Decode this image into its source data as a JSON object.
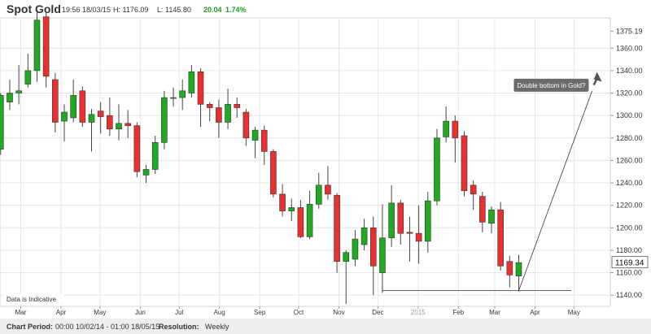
{
  "header": {
    "title": "Spot Gold",
    "time": "19:56 18/03/15",
    "high": "H: 1176.09",
    "low": "L: 1145.80",
    "change": "20.04",
    "change_pct": "1.74%"
  },
  "footer": {
    "period_label": "Chart Period:",
    "period_value": "00:00 10/02/14 - 01:00 18/05/15",
    "resolution_label": "Resolution:",
    "resolution_value": "Weekly"
  },
  "note": "Data is Indicative",
  "callout": "Double bottom in Gold?",
  "colors": {
    "up": "#1faa1f",
    "down": "#e83030",
    "wick": "#444444"
  },
  "chart_data": {
    "type": "candlestick",
    "title": "Spot Gold",
    "ylim": [
      1130,
      1387
    ],
    "yticks": [
      1140,
      1160,
      1180,
      1200,
      1220,
      1240,
      1260,
      1280,
      1300,
      1320,
      1340,
      1360,
      1375.19
    ],
    "x_period": [
      "2014-02-10",
      "2015-05-18"
    ],
    "x_labels": [
      {
        "label": "Mar",
        "date": "2014-03-01"
      },
      {
        "label": "Apr",
        "date": "2014-04-01"
      },
      {
        "label": "May",
        "date": "2014-05-01"
      },
      {
        "label": "Jun",
        "date": "2014-06-01"
      },
      {
        "label": "Jul",
        "date": "2014-07-01"
      },
      {
        "label": "Aug",
        "date": "2014-08-01"
      },
      {
        "label": "Sep",
        "date": "2014-09-01"
      },
      {
        "label": "Oct",
        "date": "2014-10-01"
      },
      {
        "label": "Nov",
        "date": "2014-11-01"
      },
      {
        "label": "Dec",
        "date": "2014-12-01"
      },
      {
        "label": "2015",
        "date": "2015-01-01"
      },
      {
        "label": "Feb",
        "date": "2015-02-01"
      },
      {
        "label": "Mar",
        "date": "2015-03-01"
      },
      {
        "label": "Apr",
        "date": "2015-04-01"
      },
      {
        "label": "May",
        "date": "2015-05-01"
      }
    ],
    "resolution": "Weekly",
    "last_price": "1169.34",
    "grid": true,
    "candles": [
      {
        "date": "2014-02-10",
        "o": 1270,
        "h": 1320,
        "l": 1265,
        "c": 1318
      },
      {
        "date": "2014-02-17",
        "o": 1312,
        "h": 1332,
        "l": 1305,
        "c": 1320
      },
      {
        "date": "2014-02-24",
        "o": 1320,
        "h": 1345,
        "l": 1310,
        "c": 1322
      },
      {
        "date": "2014-03-03",
        "o": 1328,
        "h": 1355,
        "l": 1325,
        "c": 1340
      },
      {
        "date": "2014-03-10",
        "o": 1340,
        "h": 1392,
        "l": 1330,
        "c": 1385
      },
      {
        "date": "2014-03-17",
        "o": 1388,
        "h": 1392,
        "l": 1325,
        "c": 1335
      },
      {
        "date": "2014-03-24",
        "o": 1332,
        "h": 1338,
        "l": 1285,
        "c": 1294
      },
      {
        "date": "2014-03-31",
        "o": 1295,
        "h": 1310,
        "l": 1277,
        "c": 1303
      },
      {
        "date": "2014-04-07",
        "o": 1298,
        "h": 1332,
        "l": 1294,
        "c": 1318
      },
      {
        "date": "2014-04-14",
        "o": 1322,
        "h": 1326,
        "l": 1290,
        "c": 1294
      },
      {
        "date": "2014-04-21",
        "o": 1294,
        "h": 1306,
        "l": 1268,
        "c": 1301
      },
      {
        "date": "2014-04-28",
        "o": 1304,
        "h": 1312,
        "l": 1284,
        "c": 1299
      },
      {
        "date": "2014-05-05",
        "o": 1300,
        "h": 1316,
        "l": 1282,
        "c": 1288
      },
      {
        "date": "2014-05-12",
        "o": 1288,
        "h": 1310,
        "l": 1278,
        "c": 1293
      },
      {
        "date": "2014-05-19",
        "o": 1293,
        "h": 1305,
        "l": 1280,
        "c": 1291
      },
      {
        "date": "2014-05-26",
        "o": 1291,
        "h": 1294,
        "l": 1245,
        "c": 1250
      },
      {
        "date": "2014-06-02",
        "o": 1247,
        "h": 1256,
        "l": 1240,
        "c": 1252
      },
      {
        "date": "2014-06-09",
        "o": 1252,
        "h": 1282,
        "l": 1248,
        "c": 1276
      },
      {
        "date": "2014-06-16",
        "o": 1276,
        "h": 1322,
        "l": 1270,
        "c": 1316
      },
      {
        "date": "2014-06-23",
        "o": 1316,
        "h": 1325,
        "l": 1308,
        "c": 1316
      },
      {
        "date": "2014-06-30",
        "o": 1316,
        "h": 1332,
        "l": 1305,
        "c": 1322
      },
      {
        "date": "2014-07-07",
        "o": 1320,
        "h": 1345,
        "l": 1316,
        "c": 1339
      },
      {
        "date": "2014-07-14",
        "o": 1339,
        "h": 1342,
        "l": 1290,
        "c": 1310
      },
      {
        "date": "2014-07-21",
        "o": 1310,
        "h": 1312,
        "l": 1295,
        "c": 1307
      },
      {
        "date": "2014-07-28",
        "o": 1307,
        "h": 1314,
        "l": 1280,
        "c": 1294
      },
      {
        "date": "2014-08-04",
        "o": 1294,
        "h": 1324,
        "l": 1288,
        "c": 1310
      },
      {
        "date": "2014-08-11",
        "o": 1310,
        "h": 1316,
        "l": 1298,
        "c": 1307
      },
      {
        "date": "2014-08-18",
        "o": 1303,
        "h": 1306,
        "l": 1273,
        "c": 1280
      },
      {
        "date": "2014-08-25",
        "o": 1278,
        "h": 1290,
        "l": 1262,
        "c": 1287
      },
      {
        "date": "2014-09-01",
        "o": 1287,
        "h": 1291,
        "l": 1256,
        "c": 1268
      },
      {
        "date": "2014-09-08",
        "o": 1268,
        "h": 1270,
        "l": 1227,
        "c": 1230
      },
      {
        "date": "2014-09-15",
        "o": 1230,
        "h": 1239,
        "l": 1210,
        "c": 1215
      },
      {
        "date": "2014-09-22",
        "o": 1215,
        "h": 1226,
        "l": 1206,
        "c": 1218
      },
      {
        "date": "2014-09-29",
        "o": 1218,
        "h": 1225,
        "l": 1191,
        "c": 1192
      },
      {
        "date": "2014-10-06",
        "o": 1192,
        "h": 1233,
        "l": 1190,
        "c": 1221
      },
      {
        "date": "2014-10-13",
        "o": 1221,
        "h": 1249,
        "l": 1217,
        "c": 1238
      },
      {
        "date": "2014-10-20",
        "o": 1238,
        "h": 1255,
        "l": 1225,
        "c": 1230
      },
      {
        "date": "2014-10-27",
        "o": 1229,
        "h": 1231,
        "l": 1160,
        "c": 1170
      },
      {
        "date": "2014-11-03",
        "o": 1170,
        "h": 1180,
        "l": 1132,
        "c": 1178
      },
      {
        "date": "2014-11-10",
        "o": 1172,
        "h": 1198,
        "l": 1166,
        "c": 1190
      },
      {
        "date": "2014-11-17",
        "o": 1185,
        "h": 1208,
        "l": 1180,
        "c": 1200
      },
      {
        "date": "2014-11-24",
        "o": 1200,
        "h": 1210,
        "l": 1140,
        "c": 1166
      },
      {
        "date": "2014-12-01",
        "o": 1160,
        "h": 1221,
        "l": 1142,
        "c": 1191
      },
      {
        "date": "2014-12-08",
        "o": 1191,
        "h": 1238,
        "l": 1183,
        "c": 1222
      },
      {
        "date": "2014-12-15",
        "o": 1222,
        "h": 1225,
        "l": 1185,
        "c": 1195
      },
      {
        "date": "2014-12-22",
        "o": 1196,
        "h": 1210,
        "l": 1170,
        "c": 1195
      },
      {
        "date": "2014-12-29",
        "o": 1195,
        "h": 1220,
        "l": 1168,
        "c": 1188
      },
      {
        "date": "2015-01-05",
        "o": 1188,
        "h": 1232,
        "l": 1178,
        "c": 1224
      },
      {
        "date": "2015-01-12",
        "o": 1224,
        "h": 1288,
        "l": 1220,
        "c": 1280
      },
      {
        "date": "2015-01-19",
        "o": 1281,
        "h": 1308,
        "l": 1276,
        "c": 1295
      },
      {
        "date": "2015-01-26",
        "o": 1295,
        "h": 1300,
        "l": 1258,
        "c": 1280
      },
      {
        "date": "2015-02-02",
        "o": 1282,
        "h": 1286,
        "l": 1228,
        "c": 1233
      },
      {
        "date": "2015-02-09",
        "o": 1238,
        "h": 1242,
        "l": 1216,
        "c": 1230
      },
      {
        "date": "2015-02-16",
        "o": 1228,
        "h": 1232,
        "l": 1196,
        "c": 1205
      },
      {
        "date": "2015-02-23",
        "o": 1204,
        "h": 1219,
        "l": 1195,
        "c": 1216
      },
      {
        "date": "2015-03-02",
        "o": 1216,
        "h": 1223,
        "l": 1162,
        "c": 1166
      },
      {
        "date": "2015-03-09",
        "o": 1170,
        "h": 1175,
        "l": 1147,
        "c": 1158
      },
      {
        "date": "2015-03-16",
        "o": 1157,
        "h": 1176,
        "l": 1143,
        "c": 1169
      }
    ],
    "annotations": [
      {
        "type": "hline",
        "y": 1144,
        "from": "2014-12-01",
        "to": "2015-04-29"
      },
      {
        "type": "arrow",
        "from": {
          "date": "2015-03-16",
          "y": 1144
        },
        "to": {
          "date": "2015-05-15",
          "y": 1322
        }
      },
      {
        "type": "label",
        "text": "Double bottom in Gold?",
        "date": "2015-04-01",
        "y": 1327
      }
    ]
  }
}
